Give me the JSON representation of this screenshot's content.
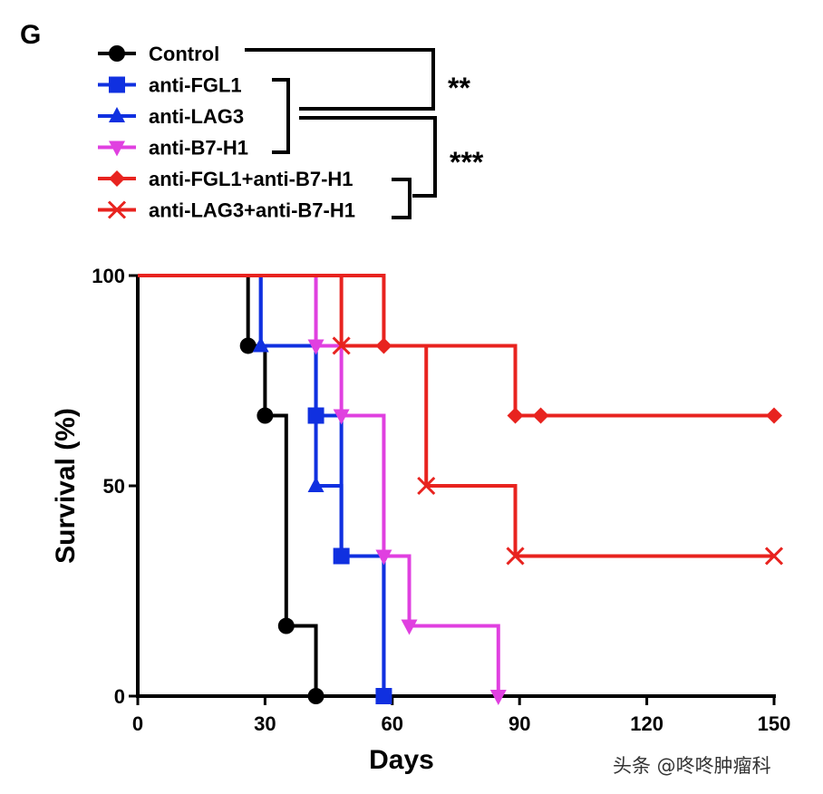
{
  "panel_label": "G",
  "watermark": "头条 @咚咚肿瘤科",
  "significance": [
    "**",
    "***"
  ],
  "chart_data": {
    "type": "line",
    "subtype": "kaplan-meier step",
    "xlabel": "Days",
    "ylabel": "Survival (%)",
    "xlim": [
      0,
      150
    ],
    "ylim": [
      0,
      100
    ],
    "xticks": [
      0,
      30,
      60,
      90,
      120,
      150
    ],
    "yticks": [
      0,
      50,
      100
    ],
    "legend_position": "top-left",
    "series": [
      {
        "name": "Control",
        "color": "#000000",
        "marker": "circle",
        "x": [
          0,
          26,
          30,
          35,
          42
        ],
        "y": [
          100,
          83.3,
          66.7,
          16.7,
          0
        ],
        "marks": [
          [
            26,
            83.3
          ],
          [
            30,
            66.7
          ],
          [
            35,
            16.7
          ],
          [
            42,
            0
          ]
        ]
      },
      {
        "name": "anti-FGL1",
        "color": "#1030e0",
        "marker": "square",
        "x": [
          0,
          29,
          42,
          48,
          58
        ],
        "y": [
          100,
          83.3,
          66.7,
          33.3,
          0
        ],
        "marks": [
          [
            42,
            66.7
          ],
          [
            48,
            33.3
          ],
          [
            58,
            0
          ]
        ]
      },
      {
        "name": "anti-LAG3",
        "color": "#1030e0",
        "marker": "triangle-up",
        "x": [
          0,
          29,
          42,
          48,
          58
        ],
        "y": [
          100,
          83.3,
          50,
          33.3,
          0
        ],
        "marks": [
          [
            29,
            83.3
          ],
          [
            42,
            50
          ]
        ]
      },
      {
        "name": "anti-B7-H1",
        "color": "#e040e0",
        "marker": "triangle-down",
        "x": [
          0,
          42,
          48,
          58,
          64,
          85
        ],
        "y": [
          100,
          83.3,
          66.7,
          33.3,
          16.7,
          0
        ],
        "marks": [
          [
            42,
            83.3
          ],
          [
            48,
            66.7
          ],
          [
            58,
            33.3
          ],
          [
            64,
            16.7
          ],
          [
            85,
            0
          ]
        ]
      },
      {
        "name": "anti-FGL1+anti-B7-H1",
        "color": "#e8231f",
        "marker": "diamond",
        "x": [
          0,
          58,
          89,
          150
        ],
        "y": [
          100,
          83.3,
          66.7,
          66.7
        ],
        "marks": [
          [
            58,
            83.3
          ],
          [
            89,
            66.7
          ],
          [
            95,
            66.7
          ],
          [
            150,
            66.7
          ]
        ]
      },
      {
        "name": "anti-LAG3+anti-B7-H1",
        "color": "#e8231f",
        "marker": "x",
        "x": [
          0,
          48,
          68,
          89,
          150
        ],
        "y": [
          100,
          83.3,
          50,
          33.3,
          33.3
        ],
        "marks": [
          [
            48,
            83.3
          ],
          [
            68,
            50
          ],
          [
            89,
            33.3
          ],
          [
            150,
            33.3
          ]
        ]
      }
    ]
  }
}
